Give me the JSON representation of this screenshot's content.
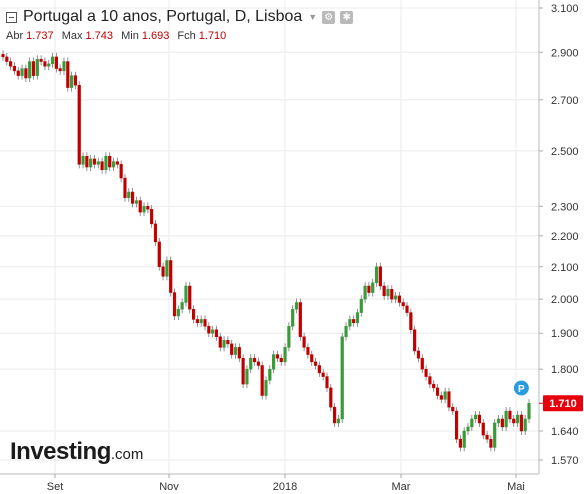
{
  "header": {
    "title": "Portugal a 10 anos, Portugal, D, Lisboa",
    "ohlc": [
      {
        "label": "Abr",
        "value": "1.737"
      },
      {
        "label": "Max",
        "value": "1.743"
      },
      {
        "label": "Min",
        "value": "1.693"
      },
      {
        "label": "Fch",
        "value": "1.710"
      }
    ]
  },
  "logo": {
    "main": "Investing",
    "domain": ".com"
  },
  "price_tag": "1.710",
  "p_marker": "P",
  "colors": {
    "up": "#3a9a3a",
    "down": "#c00000",
    "grid": "#ebebeb",
    "tag": "#e8000a",
    "marker": "#2b9be0"
  },
  "chart_data": {
    "type": "candlestick",
    "y_scale": "log",
    "ylim": [
      1.55,
      3.1
    ],
    "y_ticks": [
      "3.100",
      "2.900",
      "2.700",
      "2.500",
      "2.300",
      "2.200",
      "2.100",
      "2.000",
      "1.900",
      "1.800",
      "1.710",
      "1.640",
      "1.570"
    ],
    "x_ticks": [
      "Set",
      "Nov",
      "2018",
      "Mar",
      "Mai"
    ],
    "last_value": 1.71,
    "close_values": [
      2.88,
      2.86,
      2.84,
      2.82,
      2.8,
      2.83,
      2.79,
      2.86,
      2.8,
      2.87,
      2.86,
      2.84,
      2.85,
      2.88,
      2.83,
      2.82,
      2.86,
      2.75,
      2.8,
      2.76,
      2.45,
      2.48,
      2.44,
      2.47,
      2.45,
      2.46,
      2.43,
      2.48,
      2.44,
      2.46,
      2.45,
      2.4,
      2.33,
      2.35,
      2.31,
      2.32,
      2.28,
      2.3,
      2.29,
      2.24,
      2.18,
      2.1,
      2.07,
      2.12,
      2.02,
      1.95,
      1.97,
      1.99,
      2.04,
      1.97,
      1.94,
      1.93,
      1.94,
      1.92,
      1.9,
      1.91,
      1.89,
      1.86,
      1.88,
      1.87,
      1.84,
      1.86,
      1.83,
      1.76,
      1.8,
      1.83,
      1.82,
      1.81,
      1.73,
      1.77,
      1.8,
      1.84,
      1.83,
      1.82,
      1.86,
      1.92,
      1.97,
      1.99,
      1.89,
      1.86,
      1.84,
      1.82,
      1.81,
      1.79,
      1.78,
      1.75,
      1.7,
      1.66,
      1.67,
      1.89,
      1.92,
      1.94,
      1.93,
      1.96,
      2.0,
      2.04,
      2.02,
      2.05,
      2.1,
      2.04,
      2.01,
      2.03,
      2.0,
      2.01,
      1.99,
      1.98,
      1.96,
      1.91,
      1.85,
      1.83,
      1.8,
      1.78,
      1.76,
      1.75,
      1.73,
      1.72,
      1.74,
      1.7,
      1.69,
      1.62,
      1.6,
      1.64,
      1.65,
      1.67,
      1.68,
      1.66,
      1.63,
      1.62,
      1.6,
      1.66,
      1.67,
      1.65,
      1.69,
      1.67,
      1.66,
      1.68,
      1.64,
      1.67,
      1.71
    ]
  }
}
